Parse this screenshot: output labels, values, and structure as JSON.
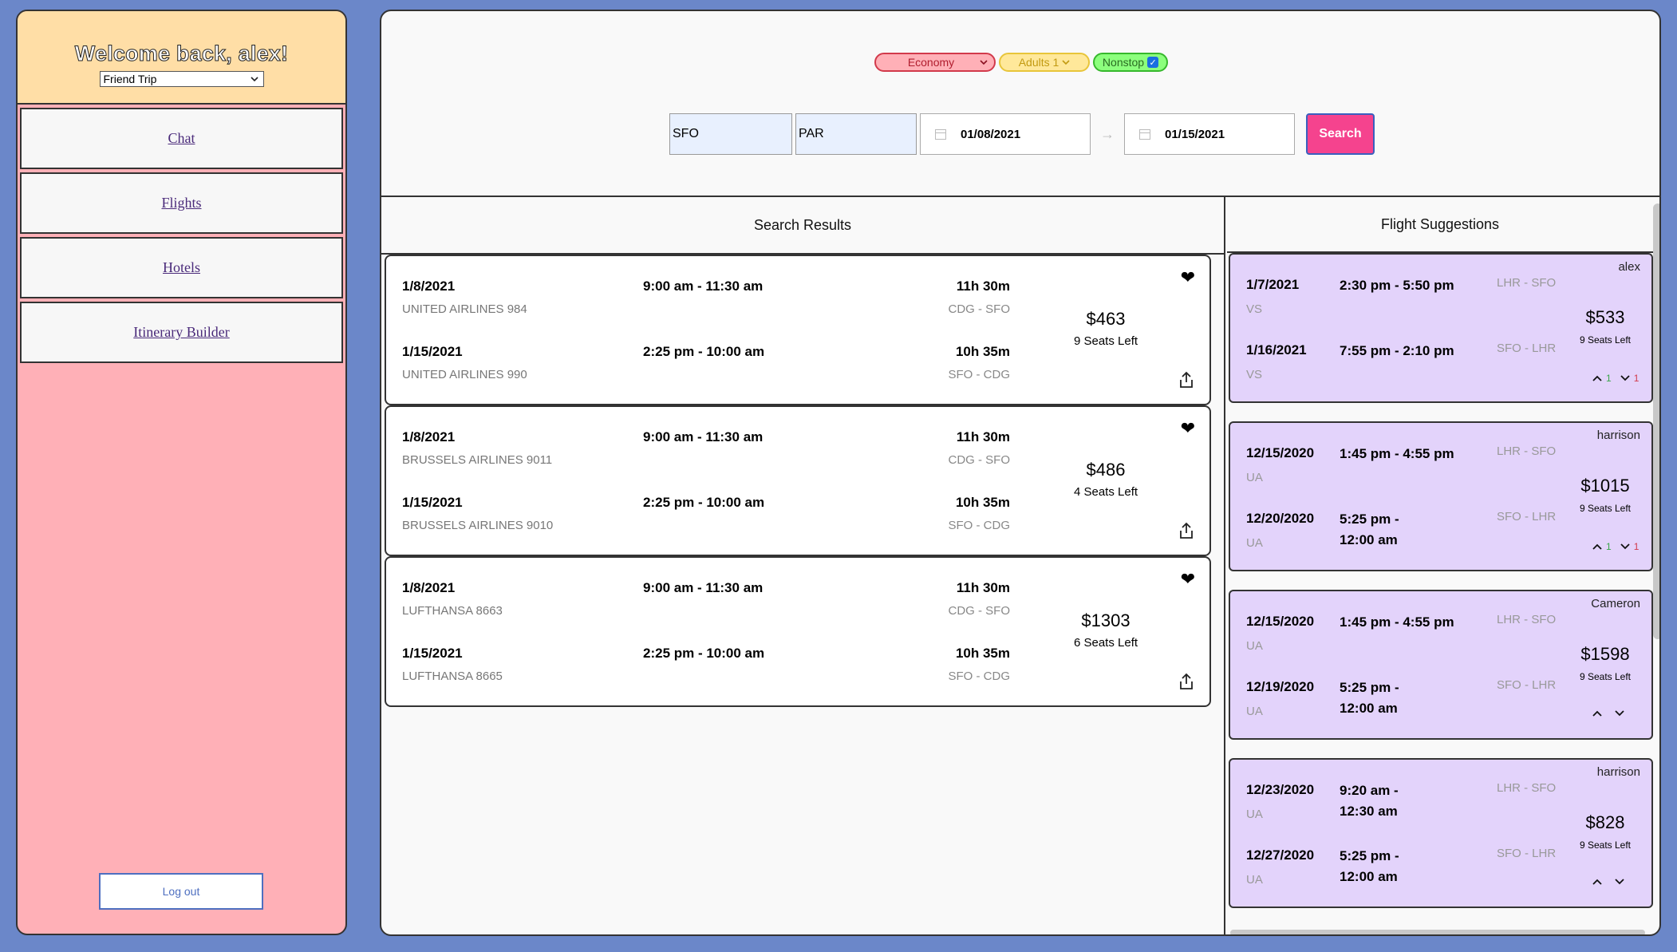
{
  "sidebar": {
    "welcome": "Welcome back, alex!",
    "trip_select": "Friend Trip",
    "nav": [
      "Chat",
      "Flights",
      "Hotels",
      "Itinerary Builder"
    ],
    "logout": "Log out"
  },
  "filters": {
    "cabin": "Economy",
    "adults": "Adults 1",
    "nonstop": "Nonstop",
    "nonstop_checked": true
  },
  "search": {
    "from": "SFO",
    "to": "PAR",
    "depart": "01/08/2021",
    "return": "01/15/2021",
    "button": "Search"
  },
  "results": {
    "title": "Search Results",
    "items": [
      {
        "out": {
          "date": "1/8/2021",
          "time": "9:00 am - 11:30 am",
          "duration": "11h 30m",
          "airline": "UNITED AIRLINES 984",
          "route": "CDG - SFO"
        },
        "ret": {
          "date": "1/15/2021",
          "time": "2:25 pm - 10:00 am",
          "duration": "10h 35m",
          "airline": "UNITED AIRLINES 990",
          "route": "SFO - CDG"
        },
        "price": "$463",
        "seats": "9 Seats Left"
      },
      {
        "out": {
          "date": "1/8/2021",
          "time": "9:00 am - 11:30 am",
          "duration": "11h 30m",
          "airline": "BRUSSELS AIRLINES 9011",
          "route": "CDG - SFO"
        },
        "ret": {
          "date": "1/15/2021",
          "time": "2:25 pm - 10:00 am",
          "duration": "10h 35m",
          "airline": "BRUSSELS AIRLINES 9010",
          "route": "SFO - CDG"
        },
        "price": "$486",
        "seats": "4 Seats Left"
      },
      {
        "out": {
          "date": "1/8/2021",
          "time": "9:00 am - 11:30 am",
          "duration": "11h 30m",
          "airline": "LUFTHANSA 8663",
          "route": "CDG - SFO"
        },
        "ret": {
          "date": "1/15/2021",
          "time": "2:25 pm - 10:00 am",
          "duration": "10h 35m",
          "airline": "LUFTHANSA 8665",
          "route": "SFO - CDG"
        },
        "price": "$1303",
        "seats": "6 Seats Left"
      }
    ]
  },
  "suggestions": {
    "title": "Flight Suggestions",
    "items": [
      {
        "user": "alex",
        "out": {
          "date": "1/7/2021",
          "time": "2:30 pm - 5:50 pm",
          "airline": "VS",
          "route": "LHR - SFO"
        },
        "ret": {
          "date": "1/16/2021",
          "time": "7:55 pm - 2:10 pm",
          "airline": "VS",
          "route": "SFO - LHR"
        },
        "price": "$533",
        "seats": "9 Seats Left",
        "up": "1",
        "down": "1"
      },
      {
        "user": "harrison",
        "out": {
          "date": "12/15/2020",
          "time": "1:45 pm - 4:55 pm",
          "airline": "UA",
          "route": "LHR - SFO"
        },
        "ret": {
          "date": "12/20/2020",
          "time": "5:25 pm - 12:00 am",
          "airline": "UA",
          "route": "SFO - LHR"
        },
        "price": "$1015",
        "seats": "9 Seats Left",
        "up": "1",
        "down": "1"
      },
      {
        "user": "Cameron",
        "out": {
          "date": "12/15/2020",
          "time": "1:45 pm - 4:55 pm",
          "airline": "UA",
          "route": "LHR - SFO"
        },
        "ret": {
          "date": "12/19/2020",
          "time": "5:25 pm - 12:00 am",
          "airline": "UA",
          "route": "SFO - LHR"
        },
        "price": "$1598",
        "seats": "9 Seats Left",
        "up": "",
        "down": ""
      },
      {
        "user": "harrison",
        "out": {
          "date": "12/23/2020",
          "time": "9:20 am - 12:30 am",
          "airline": "UA",
          "route": "LHR - SFO"
        },
        "ret": {
          "date": "12/27/2020",
          "time": "5:25 pm - 12:00 am",
          "airline": "UA",
          "route": "SFO - LHR"
        },
        "price": "$828",
        "seats": "9 Seats Left",
        "up": "",
        "down": ""
      }
    ]
  },
  "colors": {
    "background": "#6b87c9",
    "sidebar": "#ffb0b7",
    "sidebar_header": "#ffdea6",
    "suggestion_card": "#e3d3fb",
    "search_button": "#f5438e"
  },
  "icons": [
    "heart-icon",
    "share-icon",
    "calendar-icon",
    "arrow-right-icon",
    "chevron-up-icon",
    "chevron-down-icon",
    "checkbox-icon"
  ]
}
